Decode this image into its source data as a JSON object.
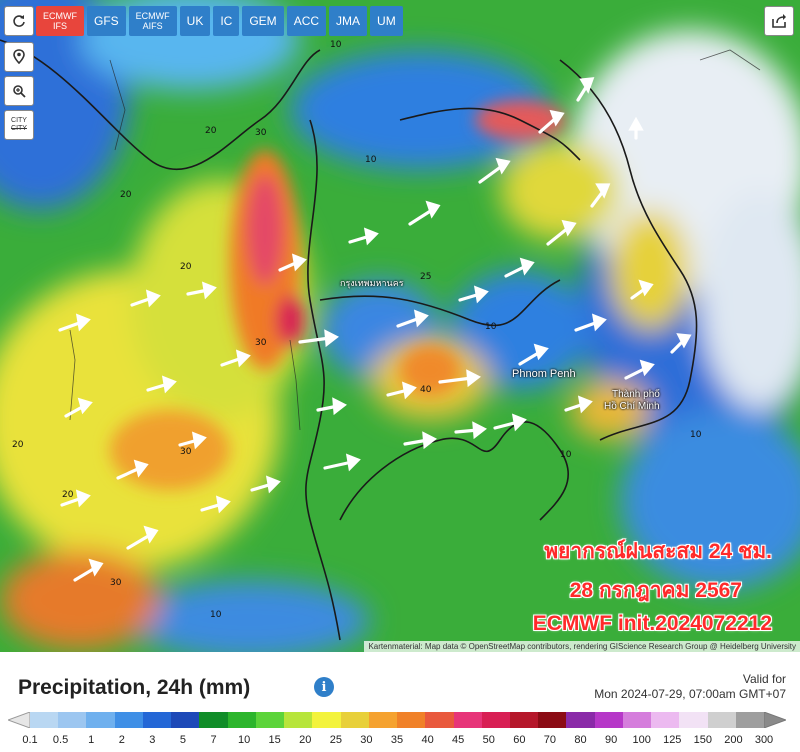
{
  "toolbar": {
    "refresh_icon": "refresh-icon",
    "models": [
      {
        "label": "ECMWF",
        "label2": "IFS",
        "active": true
      },
      {
        "label": "GFS",
        "label2": "",
        "active": false
      },
      {
        "label": "ECMWF",
        "label2": "AIFS",
        "active": false
      },
      {
        "label": "UK",
        "label2": "",
        "active": false
      },
      {
        "label": "IC",
        "label2": "",
        "active": false
      },
      {
        "label": "GEM",
        "label2": "",
        "active": false
      },
      {
        "label": "ACC",
        "label2": "",
        "active": false
      },
      {
        "label": "JMA",
        "label2": "",
        "active": false
      },
      {
        "label": "UM",
        "label2": "",
        "active": false
      }
    ],
    "city_label_1": "CITY",
    "city_label_2": "CITY"
  },
  "map": {
    "places": [
      "Phnom Penh",
      "Thành phố",
      "Hồ Chí Minh",
      "กรุงเทพมหานคร"
    ],
    "contour_labels": [
      "10",
      "20",
      "30",
      "25",
      "40"
    ],
    "overlay_line1": "พยากรณ์ฝนสะสม 24 ชม.",
    "overlay_line2": "28 กรกฎาคม 2567",
    "overlay_line3": "ECMWF  init.2024072212",
    "attribution": "Kartenmaterial: Map data © OpenStreetMap contributors, rendering GIScience Research Group @ Heidelberg University"
  },
  "legend": {
    "title": "Precipitation, 24h (mm)",
    "valid_label": "Valid for",
    "valid_time": "Mon 2024-07-29, 07:00am GMT+07",
    "labels": [
      "0.1",
      "0.5",
      "1",
      "2",
      "3",
      "5",
      "7",
      "10",
      "15",
      "20",
      "25",
      "30",
      "35",
      "40",
      "45",
      "50",
      "60",
      "70",
      "80",
      "90",
      "100",
      "125",
      "150",
      "200",
      "300"
    ],
    "colors": [
      "#b9d7f2",
      "#9cc6f0",
      "#6fb0ee",
      "#3f8fe6",
      "#2467d6",
      "#1d49b8",
      "#108d28",
      "#2cb52c",
      "#5cd43a",
      "#b7e53b",
      "#f3f33d",
      "#e8d03a",
      "#f5a22f",
      "#f08128",
      "#e9593d",
      "#e73579",
      "#d81f54",
      "#b5172a",
      "#8b0b14",
      "#8a2aa8",
      "#b637c8",
      "#d57ddc",
      "#ecbaf0",
      "#f2e2f5",
      "#cfcfcf",
      "#9e9e9e"
    ]
  }
}
